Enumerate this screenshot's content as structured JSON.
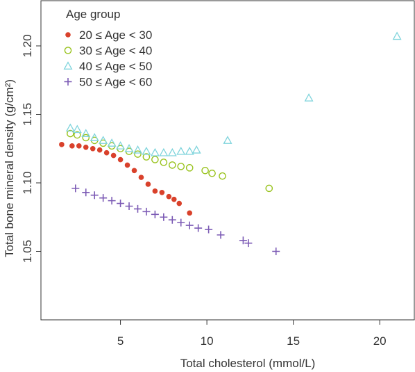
{
  "chart_data": {
    "type": "scatter",
    "title": "",
    "xlabel": "Total cholesterol (mmol/L)",
    "ylabel": "Total bone mineral density (g/cm²)",
    "xlim": [
      0.4,
      22.0
    ],
    "ylim": [
      1.0,
      1.233
    ],
    "x_ticks": [
      5,
      10,
      15,
      20
    ],
    "x_tick_labels": [
      "5",
      "10",
      "15",
      "20"
    ],
    "y_ticks": [
      1.05,
      1.1,
      1.15,
      1.2
    ],
    "y_tick_labels": [
      "1.05",
      "1.10",
      "1.15",
      "1.20"
    ],
    "grid": false,
    "legend": {
      "title": "Age group",
      "placement": "top-left"
    },
    "series": [
      {
        "name": "20 ≤ Age < 30",
        "marker": "filled-circle",
        "color": "#d9412b",
        "points": [
          [
            1.6,
            1.128
          ],
          [
            2.2,
            1.127
          ],
          [
            2.6,
            1.127
          ],
          [
            3.0,
            1.126
          ],
          [
            3.4,
            1.125
          ],
          [
            3.8,
            1.124
          ],
          [
            4.2,
            1.122
          ],
          [
            4.6,
            1.12
          ],
          [
            5.0,
            1.117
          ],
          [
            5.4,
            1.113
          ],
          [
            5.8,
            1.109
          ],
          [
            6.2,
            1.104
          ],
          [
            6.6,
            1.099
          ],
          [
            7.0,
            1.094
          ],
          [
            7.4,
            1.093
          ],
          [
            7.8,
            1.09
          ],
          [
            8.1,
            1.088
          ],
          [
            8.4,
            1.085
          ],
          [
            9.0,
            1.078
          ]
        ]
      },
      {
        "name": "30 ≤ Age < 40",
        "marker": "open-circle",
        "color": "#99c31e",
        "points": [
          [
            2.1,
            1.136
          ],
          [
            2.5,
            1.135
          ],
          [
            3.0,
            1.133
          ],
          [
            3.5,
            1.131
          ],
          [
            4.0,
            1.129
          ],
          [
            4.5,
            1.127
          ],
          [
            5.0,
            1.125
          ],
          [
            5.5,
            1.123
          ],
          [
            6.0,
            1.121
          ],
          [
            6.5,
            1.119
          ],
          [
            7.0,
            1.117
          ],
          [
            7.5,
            1.115
          ],
          [
            8.0,
            1.113
          ],
          [
            8.5,
            1.112
          ],
          [
            9.0,
            1.111
          ],
          [
            9.9,
            1.109
          ],
          [
            10.3,
            1.107
          ],
          [
            10.9,
            1.105
          ],
          [
            13.6,
            1.096
          ]
        ]
      },
      {
        "name": "40 ≤ Age < 50",
        "marker": "open-triangle",
        "color": "#7fd4dc",
        "points": [
          [
            2.1,
            1.14
          ],
          [
            2.5,
            1.139
          ],
          [
            3.0,
            1.136
          ],
          [
            3.5,
            1.133
          ],
          [
            4.0,
            1.131
          ],
          [
            4.5,
            1.129
          ],
          [
            5.0,
            1.127
          ],
          [
            5.5,
            1.125
          ],
          [
            6.0,
            1.124
          ],
          [
            6.5,
            1.123
          ],
          [
            7.0,
            1.122
          ],
          [
            7.5,
            1.122
          ],
          [
            8.0,
            1.122
          ],
          [
            8.5,
            1.123
          ],
          [
            9.0,
            1.123
          ],
          [
            9.4,
            1.124
          ],
          [
            11.2,
            1.131
          ],
          [
            15.9,
            1.162
          ],
          [
            21.0,
            1.207
          ]
        ]
      },
      {
        "name": "50 ≤ Age < 60",
        "marker": "plus",
        "color": "#7c5bb5",
        "points": [
          [
            2.4,
            1.096
          ],
          [
            3.0,
            1.093
          ],
          [
            3.5,
            1.091
          ],
          [
            4.0,
            1.089
          ],
          [
            4.5,
            1.087
          ],
          [
            5.0,
            1.085
          ],
          [
            5.5,
            1.083
          ],
          [
            6.0,
            1.081
          ],
          [
            6.5,
            1.079
          ],
          [
            7.0,
            1.077
          ],
          [
            7.5,
            1.075
          ],
          [
            8.0,
            1.073
          ],
          [
            8.5,
            1.071
          ],
          [
            9.0,
            1.069
          ],
          [
            9.5,
            1.067
          ],
          [
            10.1,
            1.066
          ],
          [
            10.8,
            1.062
          ],
          [
            12.1,
            1.058
          ],
          [
            12.4,
            1.056
          ],
          [
            14.0,
            1.05
          ]
        ]
      }
    ]
  }
}
